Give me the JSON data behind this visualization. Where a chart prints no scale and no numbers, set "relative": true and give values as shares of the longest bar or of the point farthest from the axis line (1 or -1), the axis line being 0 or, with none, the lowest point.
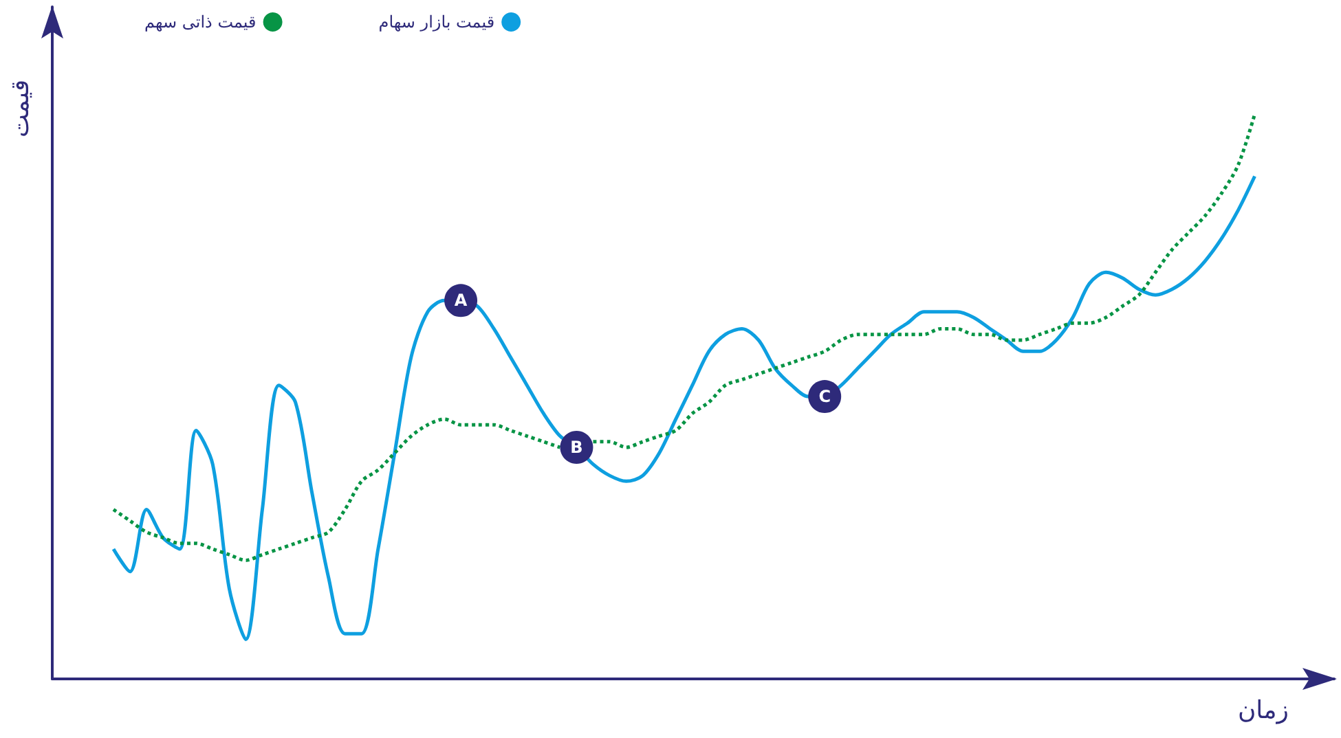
{
  "chart_data": {
    "type": "line",
    "relative": true,
    "xlabel": "زمان",
    "ylabel": "قیمت",
    "legend": "top left",
    "grid": false,
    "marker": "none",
    "categories": [
      null,
      null,
      null,
      null,
      null,
      null,
      null,
      null,
      null,
      null,
      null,
      null,
      null,
      null,
      null,
      null,
      null,
      null,
      null,
      null,
      null,
      null,
      null,
      null,
      null,
      null,
      null,
      null,
      null,
      null,
      null,
      null,
      null,
      null,
      null,
      null,
      null,
      null,
      null,
      null,
      null,
      null,
      null,
      null,
      null,
      null,
      null,
      null,
      null,
      null,
      null,
      null,
      null,
      null,
      null,
      null,
      null,
      null,
      null,
      null,
      null,
      null,
      null,
      null,
      null,
      null,
      null,
      null,
      null,
      null
    ],
    "series": [
      {
        "name": "قیمت بازار سهام",
        "color": "#0e9fe0",
        "line_style": "solid",
        "values": [
          0.23,
          0.19,
          0.3,
          0.25,
          0.23,
          0.44,
          0.38,
          0.16,
          0.07,
          0.3,
          0.52,
          0.49,
          0.33,
          0.18,
          0.08,
          0.08,
          0.23,
          0.4,
          0.57,
          0.65,
          0.67,
          0.67,
          0.66,
          0.62,
          0.57,
          0.52,
          0.47,
          0.43,
          0.41,
          0.38,
          0.36,
          0.35,
          0.36,
          0.4,
          0.46,
          0.52,
          0.58,
          0.61,
          0.62,
          0.6,
          0.55,
          0.52,
          0.5,
          0.5,
          0.52,
          0.55,
          0.58,
          0.61,
          0.63,
          0.65,
          0.65,
          0.65,
          0.64,
          0.62,
          0.6,
          0.58,
          0.58,
          0.6,
          0.64,
          0.7,
          0.72,
          0.71,
          0.69,
          0.68,
          0.69,
          0.71,
          0.74,
          0.78,
          0.83,
          0.89
        ]
      },
      {
        "name": "قیمت ذاتی سهم",
        "color": "#079445",
        "line_style": "dotted",
        "values": [
          0.3,
          0.28,
          0.26,
          0.25,
          0.24,
          0.24,
          0.23,
          0.22,
          0.21,
          0.22,
          0.23,
          0.24,
          0.25,
          0.26,
          0.3,
          0.35,
          0.37,
          0.4,
          0.43,
          0.45,
          0.46,
          0.45,
          0.45,
          0.45,
          0.44,
          0.43,
          0.42,
          0.41,
          null,
          0.42,
          0.42,
          0.41,
          0.42,
          0.43,
          0.44,
          0.47,
          0.49,
          0.52,
          0.53,
          0.54,
          0.55,
          0.56,
          0.57,
          0.58,
          0.6,
          0.61,
          0.61,
          0.61,
          0.61,
          0.61,
          0.62,
          0.62,
          0.61,
          0.61,
          0.6,
          0.6,
          0.61,
          0.62,
          0.63,
          0.63,
          0.64,
          0.66,
          0.68,
          0.72,
          0.76,
          0.79,
          0.82,
          0.86,
          0.91,
          1.0
        ]
      }
    ],
    "annotations": [
      {
        "text": "A",
        "y": 0.67
      },
      {
        "text": "B",
        "y": 0.41
      },
      {
        "text": "C",
        "y": 0.5
      }
    ]
  }
}
